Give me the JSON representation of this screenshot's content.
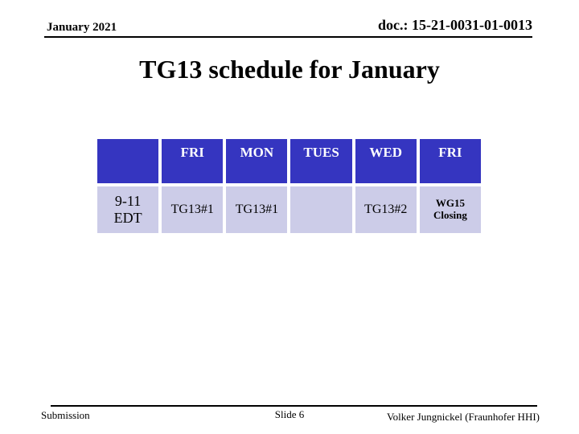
{
  "header": {
    "date": "January 2021",
    "doc_number": "doc.: 15-21-0031-01-0013"
  },
  "title": "TG13 schedule for January",
  "schedule_table": {
    "columns": [
      "",
      "FRI",
      "MON",
      "TUES",
      "WED",
      "FRI"
    ],
    "rows": [
      {
        "label": "9-11 EDT",
        "cells": [
          "TG13#1",
          "TG13#1",
          "",
          "TG13#2",
          "WG15 Closing"
        ]
      }
    ]
  },
  "footer": {
    "left": "Submission",
    "center": "Slide 6",
    "right": "Volker Jungnickel (Fraunhofer HHI)"
  },
  "colors": {
    "header_cell_bg": "#3535c0",
    "header_cell_text": "#ffffff",
    "body_cell_bg": "#cccce8",
    "text": "#000000",
    "background": "#ffffff"
  }
}
